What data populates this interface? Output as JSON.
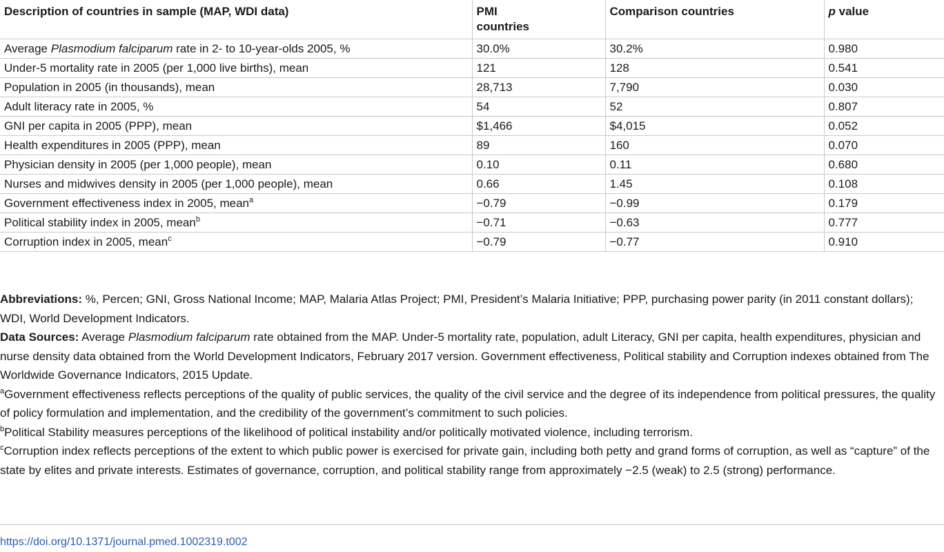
{
  "table": {
    "headers": [
      "Description of countries in sample (MAP, WDI data)",
      "PMI countries",
      "Comparison countries",
      "value"
    ],
    "header_p": "p",
    "rows": [
      {
        "pre": "Average ",
        "em": "Plasmodium falciparum",
        "post": " rate in 2- to 10-year-olds 2005, %",
        "sup": "",
        "pmi": "30.0%",
        "comp": "30.2%",
        "p": "0.980"
      },
      {
        "pre": "Under-5 mortality rate in 2005 (per 1,000 live births), mean",
        "em": "",
        "post": "",
        "sup": "",
        "pmi": "121",
        "comp": "128",
        "p": "0.541"
      },
      {
        "pre": "Population in 2005 (in thousands), mean",
        "em": "",
        "post": "",
        "sup": "",
        "pmi": "28,713",
        "comp": "7,790",
        "p": "0.030"
      },
      {
        "pre": "Adult literacy rate in 2005, %",
        "em": "",
        "post": "",
        "sup": "",
        "pmi": "54",
        "comp": "52",
        "p": "0.807"
      },
      {
        "pre": "GNI per capita in 2005 (PPP), mean",
        "em": "",
        "post": "",
        "sup": "",
        "pmi": "$1,466",
        "comp": "$4,015",
        "p": "0.052"
      },
      {
        "pre": "Health expenditures in 2005 (PPP), mean",
        "em": "",
        "post": "",
        "sup": "",
        "pmi": "89",
        "comp": "160",
        "p": "0.070"
      },
      {
        "pre": "Physician density in 2005 (per 1,000 people), mean",
        "em": "",
        "post": "",
        "sup": "",
        "pmi": "0.10",
        "comp": "0.11",
        "p": "0.680"
      },
      {
        "pre": "Nurses and midwives density in 2005 (per 1,000 people), mean",
        "em": "",
        "post": "",
        "sup": "",
        "pmi": "0.66",
        "comp": "1.45",
        "p": "0.108"
      },
      {
        "pre": "Government effectiveness index in 2005, mean",
        "em": "",
        "post": "",
        "sup": "a",
        "pmi": "−0.79",
        "comp": "−0.99",
        "p": "0.179"
      },
      {
        "pre": "Political stability index in 2005, mean",
        "em": "",
        "post": "",
        "sup": "b",
        "pmi": "−0.71",
        "comp": "−0.63",
        "p": "0.777"
      },
      {
        "pre": "Corruption index in 2005, mean",
        "em": "",
        "post": "",
        "sup": "c",
        "pmi": "−0.79",
        "comp": "−0.77",
        "p": "0.910"
      }
    ]
  },
  "notes": {
    "abbrev_label": "Abbreviations:",
    "abbrev_text": " %, Percen; GNI, Gross National Income; MAP, Malaria Atlas Project; PMI, President’s Malaria Initiative; PPP, purchasing power parity (in 2011 constant dollars); WDI, World Development Indicators.",
    "sources_label": "Data Sources:",
    "sources_pre": " Average ",
    "sources_em": "Plasmodium falciparum",
    "sources_post": " rate obtained from the MAP. Under-5 mortality rate, population, adult Literacy, GNI per capita, health expenditures, physician and nurse density data obtained from the World Development Indicators, February 2017 version. Government effectiveness, Political stability and Corruption indexes obtained from The Worldwide Governance Indicators, 2015 Update.",
    "fn_a_mark": "a",
    "fn_a": "Government effectiveness reflects perceptions of the quality of public services, the quality of the civil service and the degree of its independence from political pressures, the quality of policy formulation and implementation, and the credibility of the government’s commitment to such policies.",
    "fn_b_mark": "b",
    "fn_b": "Political Stability measures perceptions of the likelihood of political instability and/or politically motivated violence, including terrorism.",
    "fn_c_mark": "c",
    "fn_c": "Corruption index reflects perceptions of the extent to which public power is exercised for private gain, including both petty and grand forms of corruption, as well as “capture” of the state by elites and private interests. Estimates of governance, corruption, and political stability range from approximately −2.5 (weak) to 2.5 (strong) performance."
  },
  "doi": "https://doi.org/10.1371/journal.pmed.1002319.t002"
}
